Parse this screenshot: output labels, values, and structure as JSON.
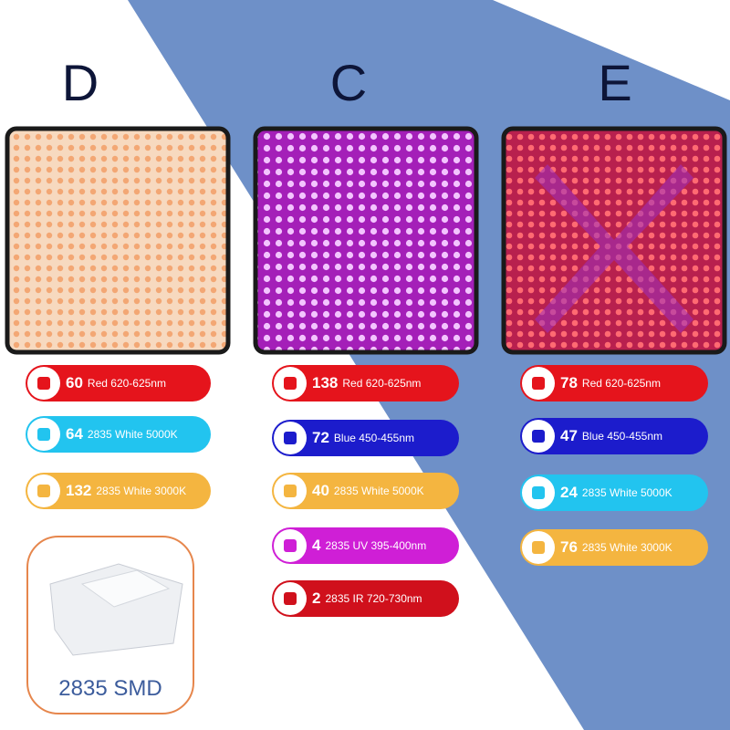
{
  "panels": [
    {
      "label": "D",
      "leds": [
        {
          "count": 60,
          "desc": "Red 620-625nm",
          "color": "#e5141c"
        },
        {
          "count": 64,
          "desc": "2835 White 5000K",
          "color": "#22c4ef"
        },
        {
          "count": 132,
          "desc": "2835 White 3000K",
          "color": "#f4b540"
        }
      ]
    },
    {
      "label": "C",
      "leds": [
        {
          "count": 138,
          "desc": "Red 620-625nm",
          "color": "#e5141c"
        },
        {
          "count": 72,
          "desc": "Blue 450-455nm",
          "color": "#1c1ccc"
        },
        {
          "count": 40,
          "desc": "2835 White 5000K",
          "color": "#f4b540"
        },
        {
          "count": 4,
          "desc": "2835 UV 395-400nm",
          "color": "#cf1fd6"
        },
        {
          "count": 2,
          "desc": "2835 IR 720-730nm",
          "color": "#d0101c"
        }
      ]
    },
    {
      "label": "E",
      "leds": [
        {
          "count": 78,
          "desc": "Red 620-625nm",
          "color": "#e5141c"
        },
        {
          "count": 47,
          "desc": "Blue 450-455nm",
          "color": "#1c1ccc"
        },
        {
          "count": 24,
          "desc": "2835 White 5000K",
          "color": "#22c4ef"
        },
        {
          "count": 76,
          "desc": "2835 White 3000K",
          "color": "#f4b540"
        }
      ]
    }
  ],
  "smd_label": "2835 SMD"
}
